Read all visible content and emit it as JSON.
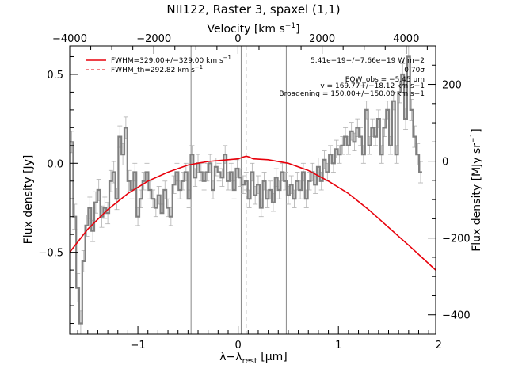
{
  "chart_data": {
    "type": "line",
    "title": "NII122, Raster 3, spaxel (1,1)",
    "xlabel": "λ−λ",
    "xlabel_sub": "rest",
    "xlabel_unit": " [μm]",
    "ylabel": "Flux density [Jy]",
    "x2label": "Velocity [km s",
    "x2label_sup": "−1",
    "x2label_end": "]",
    "y2label": "Flux density [MJy sr",
    "y2label_sup": "−1",
    "y2label_end": "]",
    "xlim": [
      -1.68,
      1.97
    ],
    "ylim": [
      -0.96,
      0.66
    ],
    "x2lim": [
      -4000,
      4700
    ],
    "y2lim": [
      -450,
      300
    ],
    "x_ticks": [
      -1,
      0,
      1,
      2
    ],
    "y_ticks": [
      -0.5,
      0.0,
      0.5
    ],
    "x2_ticks": [
      -4000,
      -2000,
      0,
      2000,
      4000
    ],
    "y2_ticks": [
      -400,
      -200,
      0,
      200
    ],
    "x_tick_labels": [
      "−1",
      "0",
      "1",
      "2"
    ],
    "y_tick_labels": [
      "−0.5",
      "0.0",
      "0.5"
    ],
    "x2_tick_labels": [
      "−4000",
      "−2000",
      "0",
      "2000",
      "4000"
    ],
    "y2_tick_labels": [
      "−400",
      "−200",
      "0",
      "200"
    ],
    "grid": false,
    "legend_position": "top-left",
    "legend": [
      {
        "label": "FWHM=329.00+/−329.00 km s",
        "sup": "−1",
        "style": "solid",
        "color": "#e8000b"
      },
      {
        "label": "FWHM_th=292.82 km s",
        "sup": "−1",
        "style": "dashed",
        "color": "#e8000b"
      }
    ],
    "annotations": [
      "5.41e−19+/−7.66e−19 W m−2",
      "0.70σ",
      "EQW_obs = −5.45 μm",
      "v = 169.77+/−18.12 km s−1",
      "Broadening = 150.00+/−150.00 km s−1"
    ],
    "vertical_lines": [
      {
        "x": -0.47,
        "style": "solid",
        "color": "#888888"
      },
      {
        "x": 0.03,
        "style": "solid",
        "color": "#888888"
      },
      {
        "x": 0.08,
        "style": "dashed",
        "color": "#999999"
      },
      {
        "x": 0.48,
        "style": "solid",
        "color": "#888888"
      }
    ],
    "fit_model": {
      "name": "continuum + line fit",
      "color": "#e8000b",
      "x": [
        -1.68,
        -1.5,
        -1.3,
        -1.1,
        -0.9,
        -0.7,
        -0.5,
        -0.3,
        -0.1,
        0.0,
        0.05,
        0.08,
        0.11,
        0.15,
        0.3,
        0.5,
        0.7,
        0.9,
        1.1,
        1.3,
        1.5,
        1.7,
        1.97
      ],
      "y": [
        -0.5,
        -0.37,
        -0.26,
        -0.17,
        -0.1,
        -0.05,
        -0.01,
        0.01,
        0.02,
        0.025,
        0.035,
        0.04,
        0.035,
        0.025,
        0.02,
        0.0,
        -0.04,
        -0.1,
        -0.17,
        -0.26,
        -0.36,
        -0.46,
        -0.6
      ]
    },
    "series": [
      {
        "name": "spectrum",
        "color": "#808080",
        "x": [
          -1.66,
          -1.63,
          -1.6,
          -1.57,
          -1.54,
          -1.51,
          -1.48,
          -1.45,
          -1.42,
          -1.39,
          -1.36,
          -1.33,
          -1.3,
          -1.27,
          -1.24,
          -1.21,
          -1.18,
          -1.15,
          -1.12,
          -1.09,
          -1.06,
          -1.03,
          -1.0,
          -0.97,
          -0.94,
          -0.91,
          -0.88,
          -0.85,
          -0.82,
          -0.79,
          -0.76,
          -0.73,
          -0.7,
          -0.67,
          -0.64,
          -0.61,
          -0.58,
          -0.55,
          -0.52,
          -0.49,
          -0.46,
          -0.43,
          -0.4,
          -0.37,
          -0.34,
          -0.31,
          -0.28,
          -0.25,
          -0.22,
          -0.19,
          -0.16,
          -0.13,
          -0.1,
          -0.07,
          -0.04,
          -0.01,
          0.02,
          0.05,
          0.08,
          0.11,
          0.14,
          0.17,
          0.2,
          0.23,
          0.26,
          0.29,
          0.32,
          0.35,
          0.38,
          0.41,
          0.44,
          0.47,
          0.5,
          0.53,
          0.56,
          0.59,
          0.62,
          0.65,
          0.68,
          0.71,
          0.74,
          0.77,
          0.8,
          0.83,
          0.86,
          0.89,
          0.92,
          0.95,
          0.98,
          1.01,
          1.04,
          1.07,
          1.1,
          1.13,
          1.16,
          1.19,
          1.22,
          1.25,
          1.28,
          1.31,
          1.34,
          1.37,
          1.4,
          1.43,
          1.46,
          1.49,
          1.52,
          1.55,
          1.58,
          1.61,
          1.64,
          1.67,
          1.7,
          1.73,
          1.76,
          1.79,
          1.82
        ],
        "y": [
          0.12,
          -0.3,
          -0.7,
          -0.9,
          -0.55,
          -0.35,
          -0.25,
          -0.38,
          -0.22,
          -0.15,
          -0.3,
          -0.25,
          -0.28,
          -0.1,
          -0.05,
          -0.2,
          0.15,
          0.05,
          0.2,
          -0.1,
          -0.15,
          -0.05,
          -0.3,
          -0.2,
          -0.1,
          -0.05,
          -0.15,
          -0.2,
          -0.25,
          -0.18,
          -0.28,
          -0.15,
          -0.25,
          -0.3,
          -0.12,
          -0.05,
          -0.15,
          -0.1,
          -0.05,
          -0.2,
          0.05,
          -0.08,
          0.0,
          -0.05,
          -0.1,
          -0.05,
          0.0,
          -0.15,
          -0.02,
          -0.05,
          -0.08,
          0.05,
          -0.1,
          -0.05,
          -0.15,
          -0.03,
          -0.08,
          -0.12,
          -0.1,
          -0.2,
          -0.05,
          -0.18,
          -0.12,
          -0.25,
          -0.1,
          -0.2,
          -0.15,
          -0.22,
          -0.08,
          -0.15,
          -0.05,
          -0.1,
          -0.18,
          -0.12,
          -0.2,
          -0.1,
          -0.15,
          -0.05,
          -0.2,
          -0.1,
          -0.05,
          -0.12,
          -0.02,
          -0.1,
          0.02,
          -0.05,
          0.05,
          0.0,
          0.08,
          0.05,
          0.1,
          0.15,
          0.1,
          0.18,
          0.12,
          0.2,
          0.15,
          0.05,
          0.3,
          0.1,
          0.2,
          0.15,
          0.25,
          0.05,
          0.2,
          0.3,
          0.1,
          0.35,
          0.05,
          0.4,
          0.5,
          0.25,
          0.6,
          0.3,
          0.15,
          0.05,
          -0.05
        ],
        "error": [
          0.06,
          0.07,
          0.08,
          0.07,
          0.06,
          0.06,
          0.06,
          0.06,
          0.06,
          0.06,
          0.06,
          0.06,
          0.06,
          0.06,
          0.06,
          0.06,
          0.06,
          0.06,
          0.06,
          0.06,
          0.05,
          0.05,
          0.05,
          0.05,
          0.05,
          0.05,
          0.05,
          0.05,
          0.05,
          0.05,
          0.05,
          0.05,
          0.05,
          0.05,
          0.05,
          0.05,
          0.05,
          0.05,
          0.05,
          0.05,
          0.05,
          0.05,
          0.05,
          0.05,
          0.05,
          0.05,
          0.05,
          0.05,
          0.05,
          0.05,
          0.05,
          0.05,
          0.05,
          0.05,
          0.05,
          0.05,
          0.05,
          0.05,
          0.05,
          0.05,
          0.05,
          0.05,
          0.05,
          0.05,
          0.05,
          0.05,
          0.05,
          0.05,
          0.05,
          0.05,
          0.05,
          0.05,
          0.05,
          0.05,
          0.05,
          0.05,
          0.05,
          0.05,
          0.05,
          0.05,
          0.05,
          0.05,
          0.05,
          0.05,
          0.05,
          0.05,
          0.05,
          0.05,
          0.05,
          0.05,
          0.05,
          0.05,
          0.05,
          0.05,
          0.05,
          0.05,
          0.05,
          0.05,
          0.05,
          0.05,
          0.05,
          0.05,
          0.05,
          0.05,
          0.05,
          0.05,
          0.05,
          0.05,
          0.05,
          0.06,
          0.06,
          0.06,
          0.06,
          0.06,
          0.06,
          0.06,
          0.06
        ]
      }
    ]
  }
}
